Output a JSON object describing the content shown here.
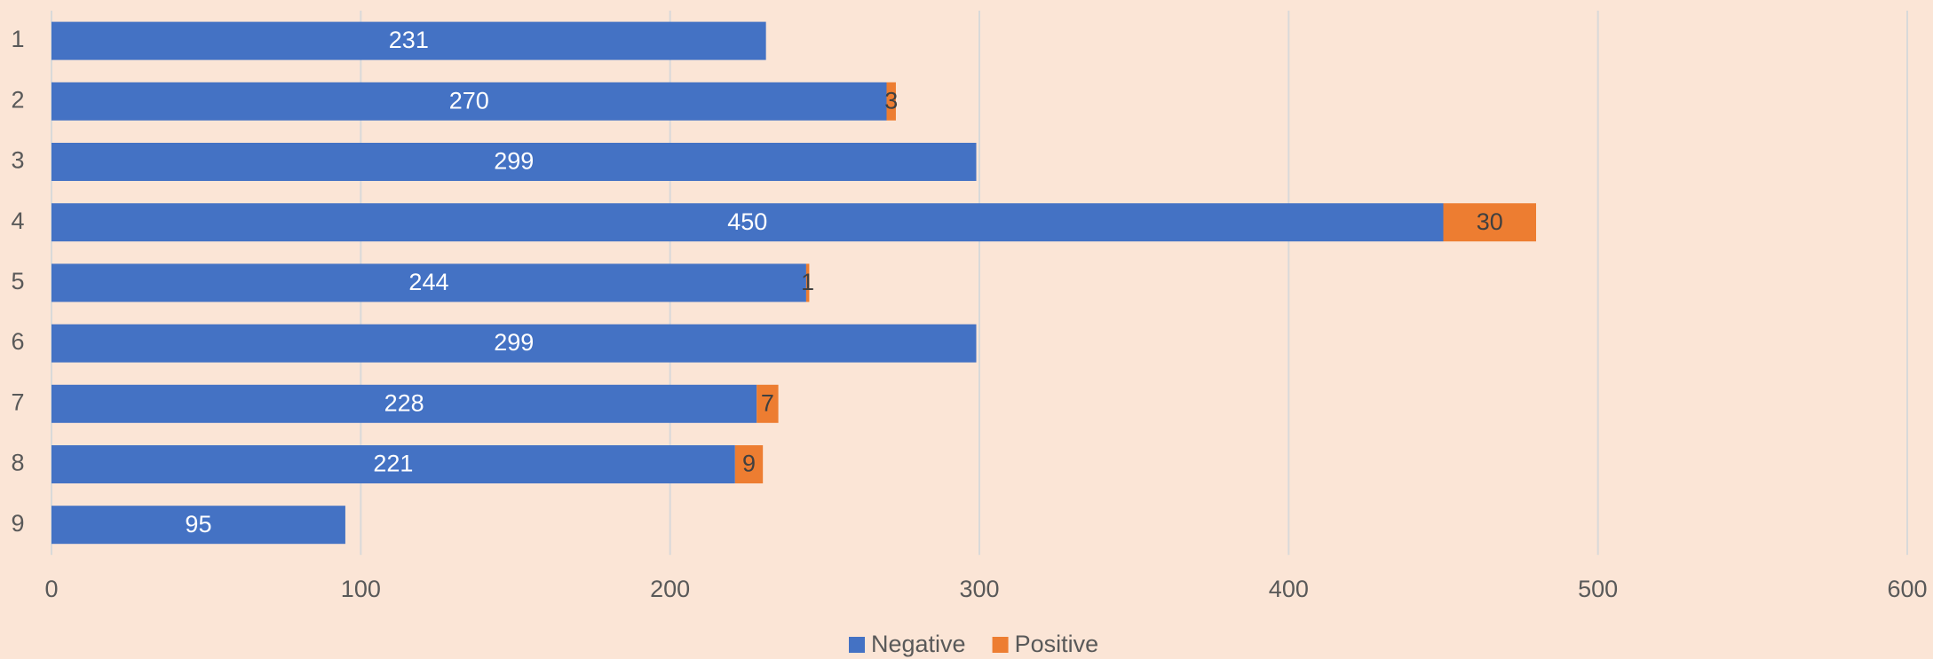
{
  "chart_data": {
    "type": "bar",
    "orientation": "horizontal",
    "stacked": true,
    "categories": [
      "1",
      "2",
      "3",
      "4",
      "5",
      "6",
      "7",
      "8",
      "9"
    ],
    "series": [
      {
        "name": "Negative",
        "color": "#4472c4",
        "values": [
          231,
          270,
          299,
          450,
          244,
          299,
          228,
          221,
          95
        ]
      },
      {
        "name": "Positive",
        "color": "#ed7d31",
        "values": [
          null,
          3,
          null,
          30,
          1,
          null,
          7,
          9,
          null
        ]
      }
    ],
    "xlim": [
      0,
      600
    ],
    "xticks": [
      0,
      100,
      200,
      300,
      400,
      500,
      600
    ],
    "grid": true,
    "legend": "bottom"
  }
}
